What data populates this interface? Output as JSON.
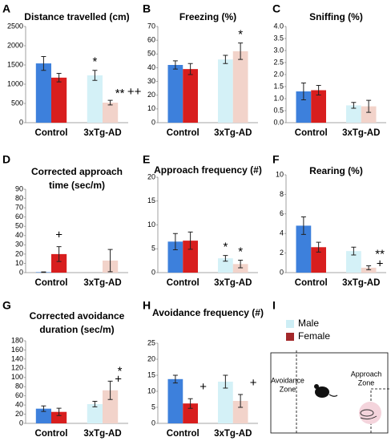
{
  "panel_labels": [
    "A",
    "B",
    "C",
    "D",
    "E",
    "F",
    "G",
    "H",
    "I"
  ],
  "legend": {
    "items": [
      {
        "name": "Male",
        "color": "#cdeef5"
      },
      {
        "name": "Female",
        "color": "#a3282a"
      }
    ]
  },
  "diagram": {
    "zones": [
      [
        "Avoidance",
        "Zone"
      ],
      [
        "Approach",
        "Zone"
      ]
    ]
  },
  "chart_data": [
    {
      "type": "bar",
      "title": [
        "Distance travelled (cm)"
      ],
      "categories": [
        "Control",
        "3xTg-AD"
      ],
      "series": [
        {
          "name": "Male",
          "colors": [
            "#3d80dc",
            "#d4f1f7"
          ],
          "values": [
            1540,
            1230
          ],
          "errors": [
            180,
            130
          ]
        },
        {
          "name": "Female",
          "colors": [
            "#d81e1e",
            "#f2d3ca"
          ],
          "values": [
            1170,
            520
          ],
          "errors": [
            110,
            60
          ]
        }
      ],
      "ylim": [
        0,
        2500
      ],
      "yticks": [
        0,
        500,
        1000,
        1500,
        2000,
        2500
      ],
      "annotations": [
        "*",
        "**",
        "++"
      ]
    },
    {
      "type": "bar",
      "title": [
        "Freezing (%)"
      ],
      "categories": [
        "Control",
        "3xTg-AD"
      ],
      "series": [
        {
          "name": "Male",
          "colors": [
            "#3d80dc",
            "#d4f1f7"
          ],
          "values": [
            42,
            46
          ],
          "errors": [
            3,
            3
          ]
        },
        {
          "name": "Female",
          "colors": [
            "#d81e1e",
            "#f2d3ca"
          ],
          "values": [
            39,
            52
          ],
          "errors": [
            4,
            6
          ]
        }
      ],
      "ylim": [
        0,
        70
      ],
      "yticks": [
        0,
        10,
        20,
        30,
        40,
        50,
        60,
        70
      ],
      "annotations": [
        "*"
      ]
    },
    {
      "type": "bar",
      "title": [
        "Sniffing (%)"
      ],
      "categories": [
        "Control",
        "3xTg-AD"
      ],
      "series": [
        {
          "name": "Male",
          "colors": [
            "#3d80dc",
            "#d4f1f7"
          ],
          "values": [
            1.3,
            0.72
          ],
          "errors": [
            0.35,
            0.12
          ]
        },
        {
          "name": "Female",
          "colors": [
            "#d81e1e",
            "#f2d3ca"
          ],
          "values": [
            1.35,
            0.68
          ],
          "errors": [
            0.2,
            0.25
          ]
        }
      ],
      "ylim": [
        0,
        4
      ],
      "yticks": [
        {
          "value": 0,
          "label": "0.0"
        },
        0.5,
        {
          "value": 1,
          "label": "1.0"
        },
        1.5,
        {
          "value": 2,
          "label": "2.0"
        },
        2.5,
        {
          "value": 3,
          "label": "3.0"
        },
        3.5,
        {
          "value": 4,
          "label": "4.0"
        }
      ],
      "annotations": []
    },
    {
      "type": "bar",
      "title": [
        "Corrected approach",
        "time (sec/m)"
      ],
      "categories": [
        "Control",
        "3xTg-AD"
      ],
      "series": [
        {
          "name": "Male",
          "colors": [
            "#3d80dc",
            "#d4f1f7"
          ],
          "values": [
            0.5,
            0
          ],
          "errors": [
            0.3,
            0
          ]
        },
        {
          "name": "Female",
          "colors": [
            "#d81e1e",
            "#f2d3ca"
          ],
          "values": [
            20,
            13
          ],
          "errors": [
            8,
            12
          ]
        }
      ],
      "ylim": [
        0,
        90
      ],
      "yticks": [
        0,
        10,
        20,
        30,
        40,
        50,
        60,
        70,
        80,
        90
      ],
      "annotations": [
        "+"
      ]
    },
    {
      "type": "bar",
      "title": [
        "Approach frequency (#)"
      ],
      "categories": [
        "Control",
        "3xTg-AD"
      ],
      "series": [
        {
          "name": "Male",
          "colors": [
            "#3d80dc",
            "#d4f1f7"
          ],
          "values": [
            6.5,
            3.0
          ],
          "errors": [
            1.7,
            0.6
          ]
        },
        {
          "name": "Female",
          "colors": [
            "#d81e1e",
            "#f2d3ca"
          ],
          "values": [
            6.7,
            1.8
          ],
          "errors": [
            1.8,
            0.8
          ]
        }
      ],
      "ylim": [
        0,
        20
      ],
      "yticks": [
        0,
        5,
        10,
        15,
        20
      ],
      "annotations": [
        "*",
        "*"
      ]
    },
    {
      "type": "bar",
      "title": [
        "Rearing (%)"
      ],
      "categories": [
        "Control",
        "3xTg-AD"
      ],
      "series": [
        {
          "name": "Male",
          "colors": [
            "#3d80dc",
            "#d4f1f7"
          ],
          "values": [
            4.8,
            2.2
          ],
          "errors": [
            0.9,
            0.4
          ]
        },
        {
          "name": "Female",
          "colors": [
            "#d81e1e",
            "#f2d3ca"
          ],
          "values": [
            2.6,
            0.5
          ],
          "errors": [
            0.5,
            0.2
          ]
        }
      ],
      "ylim": [
        0,
        10
      ],
      "yticks": [
        0,
        2,
        4,
        6,
        8,
        10
      ],
      "annotations": [
        "**",
        "+"
      ]
    },
    {
      "type": "bar",
      "title": [
        "Corrected avoidance",
        "duration (sec/m)"
      ],
      "categories": [
        "Control",
        "3xTg-AD"
      ],
      "series": [
        {
          "name": "Male",
          "colors": [
            "#3d80dc",
            "#d4f1f7"
          ],
          "values": [
            32,
            42
          ],
          "errors": [
            6,
            6
          ]
        },
        {
          "name": "Female",
          "colors": [
            "#d81e1e",
            "#f2d3ca"
          ],
          "values": [
            25,
            72
          ],
          "errors": [
            8,
            20
          ]
        }
      ],
      "ylim": [
        0,
        180
      ],
      "yticks": [
        0,
        20,
        40,
        60,
        80,
        100,
        120,
        140,
        160,
        180
      ],
      "annotations": [
        "*",
        "+"
      ]
    },
    {
      "type": "bar",
      "title": [
        "Avoidance frequency (#)"
      ],
      "categories": [
        "Control",
        "3xTg-AD"
      ],
      "series": [
        {
          "name": "Male",
          "colors": [
            "#3d80dc",
            "#d4f1f7"
          ],
          "values": [
            13.8,
            13
          ],
          "errors": [
            1.2,
            2
          ]
        },
        {
          "name": "Female",
          "colors": [
            "#d81e1e",
            "#f2d3ca"
          ],
          "values": [
            6.2,
            7
          ],
          "errors": [
            1.5,
            2
          ]
        }
      ],
      "ylim": [
        0,
        25
      ],
      "yticks": [
        0,
        5,
        10,
        15,
        20,
        25
      ],
      "annotations": [
        "+",
        "+"
      ]
    }
  ]
}
